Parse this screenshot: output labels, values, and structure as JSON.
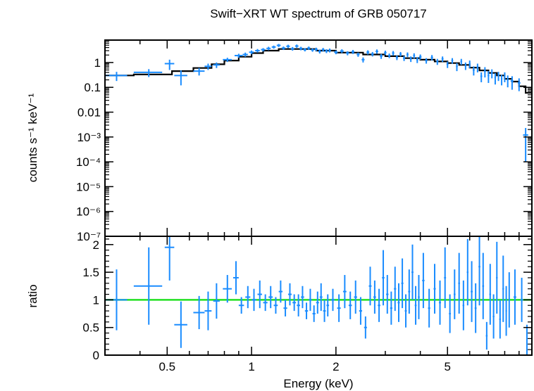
{
  "chart_data": [
    {
      "type": "scatter",
      "title": "Swift−XRT WT spectrum of GRB 050717",
      "ylabel": "counts s⁻¹ keV⁻¹",
      "xlabel": "",
      "xscale": "log",
      "yscale": "log",
      "xlim": [
        0.3,
        10
      ],
      "ylim": [
        1e-07,
        8
      ],
      "grid": false,
      "ytick_labels": [
        "1",
        "0.1",
        "0.01",
        "10⁻³",
        "10⁻⁴",
        "10⁻⁵",
        "10⁻⁶",
        "10⁻⁷"
      ],
      "ytick_values": [
        1,
        0.1,
        0.01,
        0.001,
        0.0001,
        1e-05,
        1e-06,
        1e-07
      ],
      "model": {
        "color": "#000000",
        "steps": [
          [
            0.3,
            0.38,
            0.3
          ],
          [
            0.38,
            0.52,
            0.33
          ],
          [
            0.52,
            0.62,
            0.45
          ],
          [
            0.62,
            0.72,
            0.6
          ],
          [
            0.72,
            0.8,
            0.85
          ],
          [
            0.8,
            0.9,
            1.2
          ],
          [
            0.9,
            1.0,
            1.7
          ],
          [
            1.0,
            1.1,
            2.4
          ],
          [
            1.1,
            1.25,
            3.0
          ],
          [
            1.25,
            1.45,
            3.5
          ],
          [
            1.45,
            1.7,
            3.5
          ],
          [
            1.7,
            2.0,
            3.0
          ],
          [
            2.0,
            2.5,
            2.5
          ],
          [
            2.5,
            3.0,
            2.1
          ],
          [
            3.0,
            3.5,
            1.8
          ],
          [
            3.5,
            4.0,
            1.5
          ],
          [
            4.0,
            4.5,
            1.3
          ],
          [
            4.5,
            5.0,
            1.1
          ],
          [
            5.0,
            5.5,
            0.95
          ],
          [
            5.5,
            6.0,
            0.8
          ],
          [
            6.0,
            6.5,
            0.62
          ],
          [
            6.5,
            7.0,
            0.48
          ],
          [
            7.0,
            7.5,
            0.38
          ],
          [
            7.5,
            8.0,
            0.3
          ],
          [
            8.0,
            8.5,
            0.22
          ],
          [
            8.5,
            9.0,
            0.17
          ],
          [
            9.0,
            9.5,
            0.11
          ],
          [
            9.5,
            10.0,
            0.06
          ]
        ]
      },
      "series": [
        {
          "color": "#1a8cff",
          "points": [
            [
              0.33,
              0.03,
              0.3,
              0.12
            ],
            [
              0.43,
              0.05,
              0.4,
              0.14
            ],
            [
              0.51,
              0.02,
              0.9,
              0.4
            ],
            [
              0.56,
              0.03,
              0.3,
              0.18
            ],
            [
              0.65,
              0.03,
              0.45,
              0.15
            ],
            [
              0.7,
              0.02,
              0.7,
              0.2
            ],
            [
              0.75,
              0.02,
              0.8,
              0.2
            ],
            [
              0.82,
              0.03,
              1.3,
              0.25
            ],
            [
              0.9,
              0.03,
              1.9,
              0.35
            ],
            [
              0.95,
              0.02,
              2.1,
              0.4
            ],
            [
              1.0,
              0.02,
              2.6,
              0.45
            ],
            [
              1.05,
              0.02,
              3.0,
              0.5
            ],
            [
              1.1,
              0.02,
              3.3,
              0.5
            ],
            [
              1.15,
              0.02,
              3.7,
              0.6
            ],
            [
              1.2,
              0.02,
              4.2,
              0.6
            ],
            [
              1.25,
              0.02,
              4.9,
              0.7
            ],
            [
              1.3,
              0.02,
              3.8,
              0.6
            ],
            [
              1.35,
              0.02,
              4.5,
              0.7
            ],
            [
              1.4,
              0.02,
              3.6,
              0.6
            ],
            [
              1.45,
              0.02,
              4.6,
              0.7
            ],
            [
              1.5,
              0.02,
              3.7,
              0.6
            ],
            [
              1.55,
              0.02,
              3.3,
              0.5
            ],
            [
              1.6,
              0.02,
              3.8,
              0.6
            ],
            [
              1.65,
              0.02,
              3.2,
              0.5
            ],
            [
              1.7,
              0.02,
              3.4,
              0.55
            ],
            [
              1.75,
              0.02,
              2.8,
              0.5
            ],
            [
              1.8,
              0.02,
              3.3,
              0.55
            ],
            [
              1.85,
              0.02,
              2.9,
              0.5
            ],
            [
              1.9,
              0.02,
              3.1,
              0.55
            ],
            [
              2.0,
              0.03,
              2.6,
              0.45
            ],
            [
              2.1,
              0.03,
              2.9,
              0.5
            ],
            [
              2.2,
              0.03,
              2.4,
              0.45
            ],
            [
              2.3,
              0.03,
              2.7,
              0.5
            ],
            [
              2.4,
              0.03,
              2.1,
              0.4
            ],
            [
              2.5,
              0.03,
              1.3,
              0.3
            ],
            [
              2.6,
              0.03,
              2.6,
              0.5
            ],
            [
              2.7,
              0.03,
              2.2,
              0.45
            ],
            [
              2.8,
              0.03,
              2.8,
              0.55
            ],
            [
              2.9,
              0.03,
              1.8,
              0.4
            ],
            [
              3.0,
              0.03,
              2.5,
              0.5
            ],
            [
              3.1,
              0.03,
              1.9,
              0.4
            ],
            [
              3.2,
              0.03,
              2.4,
              0.5
            ],
            [
              3.3,
              0.03,
              1.6,
              0.35
            ],
            [
              3.4,
              0.03,
              2.2,
              0.45
            ],
            [
              3.5,
              0.03,
              1.5,
              0.35
            ],
            [
              3.6,
              0.03,
              2.1,
              0.45
            ],
            [
              3.7,
              0.03,
              1.4,
              0.35
            ],
            [
              3.8,
              0.03,
              1.9,
              0.45
            ],
            [
              3.9,
              0.03,
              1.3,
              0.35
            ],
            [
              4.0,
              0.04,
              1.7,
              0.4
            ],
            [
              4.2,
              0.04,
              1.2,
              0.3
            ],
            [
              4.4,
              0.04,
              1.6,
              0.4
            ],
            [
              4.6,
              0.04,
              1.1,
              0.3
            ],
            [
              4.8,
              0.04,
              1.4,
              0.35
            ],
            [
              5.0,
              0.04,
              0.85,
              0.25
            ],
            [
              5.2,
              0.04,
              1.2,
              0.3
            ],
            [
              5.4,
              0.04,
              0.7,
              0.25
            ],
            [
              5.6,
              0.04,
              1.1,
              0.3
            ],
            [
              5.8,
              0.04,
              0.75,
              0.25
            ],
            [
              6.0,
              0.04,
              0.9,
              0.3
            ],
            [
              6.2,
              0.05,
              0.5,
              0.2
            ],
            [
              6.4,
              0.05,
              0.65,
              0.25
            ],
            [
              6.6,
              0.05,
              0.28,
              0.12
            ],
            [
              6.8,
              0.05,
              0.45,
              0.2
            ],
            [
              7.0,
              0.05,
              0.3,
              0.15
            ],
            [
              7.2,
              0.05,
              0.38,
              0.15
            ],
            [
              7.4,
              0.05,
              0.25,
              0.12
            ],
            [
              7.6,
              0.05,
              0.3,
              0.12
            ],
            [
              7.8,
              0.05,
              0.22,
              0.1
            ],
            [
              8.0,
              0.05,
              0.28,
              0.12
            ],
            [
              8.2,
              0.05,
              0.2,
              0.1
            ],
            [
              8.5,
              0.1,
              0.18,
              0.1
            ],
            [
              9.0,
              0.1,
              0.15,
              0.08
            ],
            [
              9.5,
              0.2,
              0.0012,
              0.0011
            ]
          ]
        }
      ]
    },
    {
      "type": "scatter",
      "title": "",
      "xlabel": "Energy (keV)",
      "ylabel": "ratio",
      "xscale": "log",
      "xlim": [
        0.3,
        10
      ],
      "ylim": [
        0,
        2.15
      ],
      "grid": false,
      "xtick_labels": [
        "0.5",
        "1",
        "2",
        "5"
      ],
      "xtick_values": [
        0.5,
        1,
        2,
        5
      ],
      "ytick_labels": [
        "0",
        "0.5",
        "1",
        "1.5",
        "2"
      ],
      "ytick_values": [
        0,
        0.5,
        1,
        1.5,
        2
      ],
      "reference_line": {
        "y": 1,
        "color": "#22e022"
      },
      "series": [
        {
          "color": "#1a8cff",
          "points": [
            [
              0.33,
              0.03,
              1.0,
              0.55
            ],
            [
              0.43,
              0.05,
              1.25,
              0.7
            ],
            [
              0.51,
              0.02,
              1.95,
              0.6
            ],
            [
              0.56,
              0.03,
              0.55,
              0.42
            ],
            [
              0.65,
              0.03,
              0.77,
              0.3
            ],
            [
              0.7,
              0.02,
              0.8,
              0.35
            ],
            [
              0.75,
              0.02,
              0.98,
              0.32
            ],
            [
              0.82,
              0.03,
              1.2,
              0.25
            ],
            [
              0.88,
              0.02,
              1.4,
              0.3
            ],
            [
              0.92,
              0.02,
              0.9,
              0.15
            ],
            [
              0.97,
              0.02,
              1.05,
              0.2
            ],
            [
              1.02,
              0.02,
              1.0,
              0.2
            ],
            [
              1.07,
              0.02,
              1.1,
              0.25
            ],
            [
              1.12,
              0.02,
              0.95,
              0.15
            ],
            [
              1.17,
              0.02,
              1.05,
              0.2
            ],
            [
              1.22,
              0.02,
              0.9,
              0.15
            ],
            [
              1.27,
              0.02,
              1.15,
              0.2
            ],
            [
              1.32,
              0.02,
              0.85,
              0.15
            ],
            [
              1.37,
              0.02,
              1.1,
              0.2
            ],
            [
              1.42,
              0.02,
              0.95,
              0.15
            ],
            [
              1.47,
              0.02,
              0.9,
              0.2
            ],
            [
              1.52,
              0.02,
              1.05,
              0.2
            ],
            [
              1.57,
              0.02,
              0.8,
              0.15
            ],
            [
              1.62,
              0.02,
              1.0,
              0.2
            ],
            [
              1.67,
              0.02,
              0.75,
              0.15
            ],
            [
              1.72,
              0.02,
              0.95,
              0.2
            ],
            [
              1.77,
              0.02,
              1.05,
              0.25
            ],
            [
              1.82,
              0.02,
              0.8,
              0.2
            ],
            [
              1.87,
              0.02,
              0.9,
              0.2
            ],
            [
              1.95,
              0.03,
              1.0,
              0.2
            ],
            [
              2.05,
              0.03,
              0.85,
              0.25
            ],
            [
              2.15,
              0.03,
              1.15,
              0.3
            ],
            [
              2.25,
              0.03,
              0.9,
              0.25
            ],
            [
              2.35,
              0.03,
              1.05,
              0.3
            ],
            [
              2.45,
              0.03,
              0.8,
              0.25
            ],
            [
              2.55,
              0.03,
              0.5,
              0.2
            ],
            [
              2.65,
              0.03,
              1.25,
              0.35
            ],
            [
              2.75,
              0.03,
              1.05,
              0.3
            ],
            [
              2.85,
              0.03,
              0.9,
              0.3
            ],
            [
              2.95,
              0.03,
              1.4,
              0.5
            ],
            [
              3.05,
              0.03,
              1.1,
              0.35
            ],
            [
              3.15,
              0.03,
              0.85,
              0.3
            ],
            [
              3.25,
              0.03,
              1.2,
              0.4
            ],
            [
              3.35,
              0.03,
              0.95,
              0.35
            ],
            [
              3.45,
              0.03,
              1.3,
              0.45
            ],
            [
              3.55,
              0.03,
              0.8,
              0.3
            ],
            [
              3.65,
              0.03,
              1.15,
              0.4
            ],
            [
              3.75,
              0.03,
              1.5,
              0.5
            ],
            [
              3.85,
              0.03,
              0.9,
              0.35
            ],
            [
              3.95,
              0.03,
              1.05,
              0.4
            ],
            [
              4.1,
              0.04,
              1.35,
              0.5
            ],
            [
              4.3,
              0.04,
              0.85,
              0.35
            ],
            [
              4.5,
              0.04,
              1.2,
              0.45
            ],
            [
              4.7,
              0.04,
              0.95,
              0.4
            ],
            [
              4.9,
              0.04,
              1.4,
              0.55
            ],
            [
              5.1,
              0.04,
              0.75,
              0.35
            ],
            [
              5.3,
              0.04,
              1.1,
              0.45
            ],
            [
              5.5,
              0.04,
              1.3,
              0.55
            ],
            [
              5.7,
              0.04,
              0.9,
              0.45
            ],
            [
              5.9,
              0.04,
              1.5,
              0.6
            ],
            [
              6.1,
              0.05,
              1.15,
              0.55
            ],
            [
              6.3,
              0.05,
              0.85,
              0.45
            ],
            [
              6.5,
              0.05,
              1.6,
              0.7
            ],
            [
              6.7,
              0.05,
              1.25,
              0.6
            ],
            [
              6.9,
              0.05,
              0.35,
              0.25
            ],
            [
              7.1,
              0.05,
              1.1,
              0.55
            ],
            [
              7.3,
              0.05,
              0.7,
              0.4
            ],
            [
              7.5,
              0.05,
              1.4,
              0.65
            ],
            [
              7.7,
              0.05,
              0.65,
              0.35
            ],
            [
              7.9,
              0.05,
              1.2,
              0.6
            ],
            [
              8.1,
              0.05,
              0.8,
              0.45
            ],
            [
              8.3,
              0.05,
              1.0,
              0.5
            ],
            [
              8.7,
              0.1,
              1.05,
              0.5
            ],
            [
              9.2,
              0.1,
              1.0,
              0.4
            ],
            [
              9.6,
              0.1,
              0.0,
              0.55
            ]
          ]
        }
      ]
    }
  ]
}
